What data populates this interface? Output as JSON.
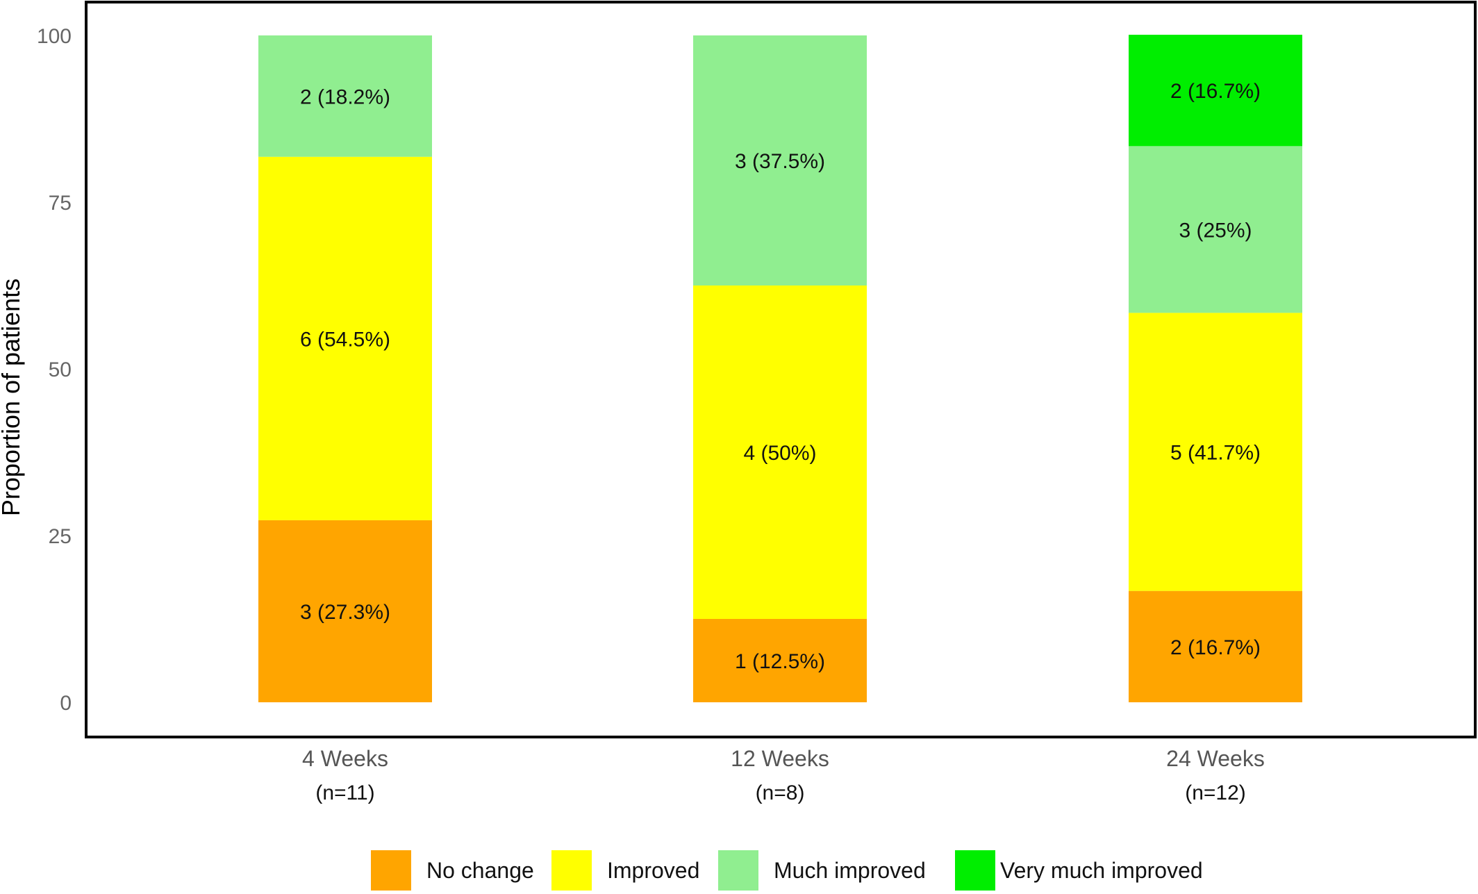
{
  "chart_data": {
    "type": "bar",
    "stacked": true,
    "title": "",
    "xlabel": "",
    "ylabel": "Proportion of patients",
    "ylim": [
      0,
      100
    ],
    "yticks": [
      0,
      25,
      50,
      75,
      100
    ],
    "categories": [
      "4 Weeks",
      "12 Weeks",
      "24 Weeks"
    ],
    "category_n": [
      "(n=11)",
      "(n=8)",
      "(n=12)"
    ],
    "grid": false,
    "legend_position": "bottom",
    "series": [
      {
        "name": "No change",
        "color": "#FFA500",
        "values": [
          27.3,
          12.5,
          16.7
        ],
        "labels": [
          "3 (27.3%)",
          "1 (12.5%)",
          "2 (16.7%)"
        ]
      },
      {
        "name": "Improved",
        "color": "#FFFF00",
        "values": [
          54.5,
          50,
          41.7
        ],
        "labels": [
          "6 (54.5%)",
          "4 (50%)",
          "5 (41.7%)"
        ]
      },
      {
        "name": "Much improved",
        "color": "#90EE90",
        "values": [
          18.2,
          37.5,
          25
        ],
        "labels": [
          "2 (18.2%)",
          "3 (37.5%)",
          "3 (25%)"
        ]
      },
      {
        "name": "Very much improved",
        "color": "#00EE00",
        "values": [
          0,
          0,
          16.7
        ],
        "labels": [
          "",
          "",
          "2 (16.7%)"
        ]
      }
    ]
  }
}
